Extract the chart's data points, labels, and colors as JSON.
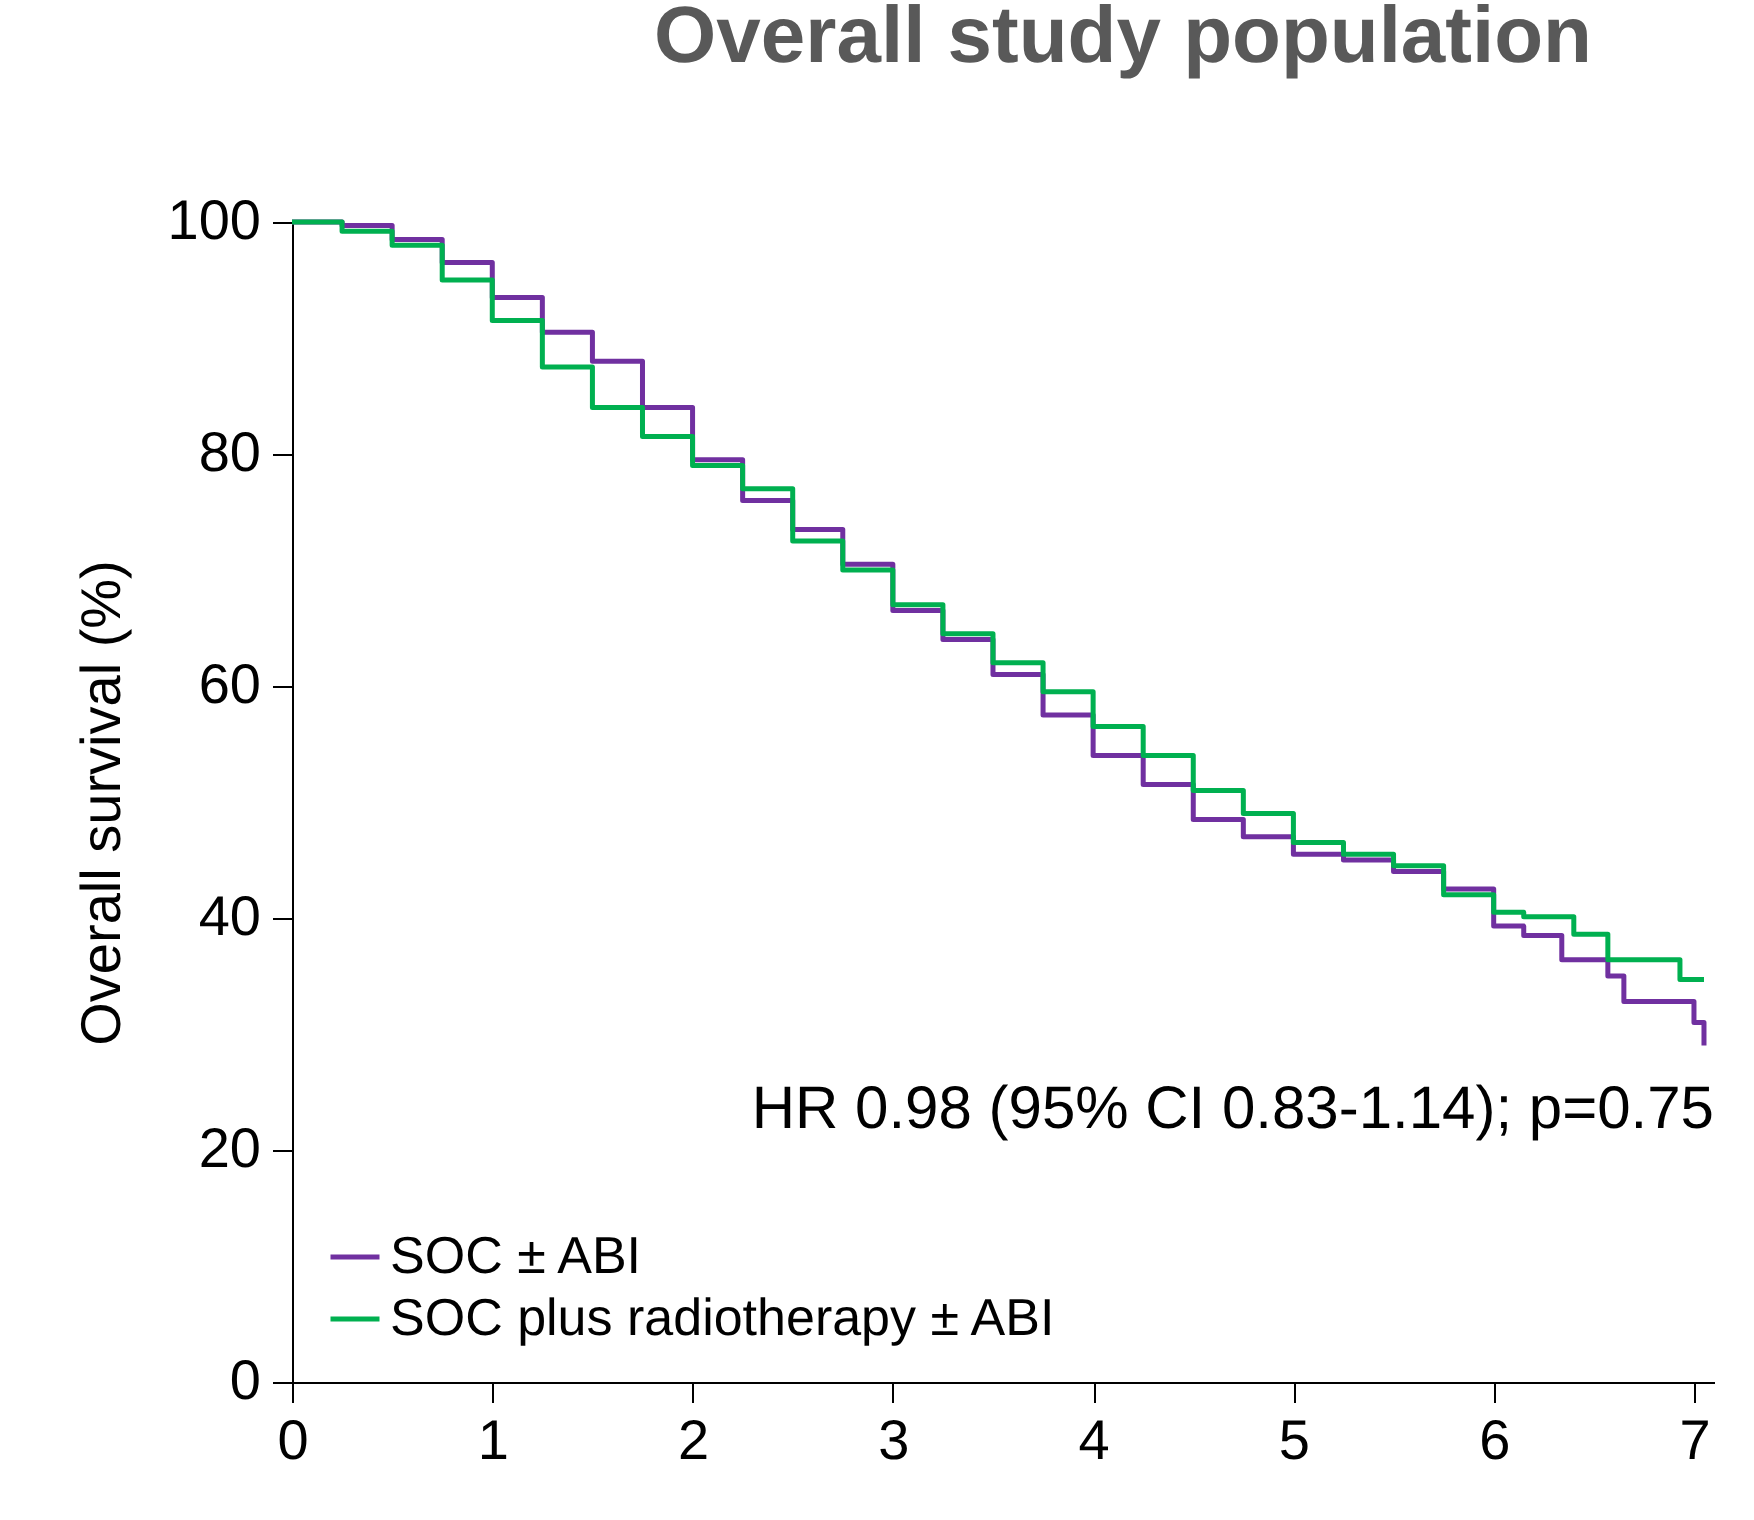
{
  "chart_data": {
    "type": "step",
    "title": "Overall study population",
    "ylabel": "Overall survival (%)",
    "xlim": [
      0,
      7.1
    ],
    "xticks": [
      0,
      1,
      2,
      3,
      4,
      5,
      6,
      7
    ],
    "ylim": [
      0,
      100
    ],
    "yticks": [
      0,
      20,
      40,
      60,
      80,
      100
    ],
    "grid": false,
    "legend": "bottom left",
    "annotations": [
      "HR 0.98 (95% CI 0.83-1.14); p=0.75"
    ],
    "series": [
      {
        "name": "SOC ± ABI",
        "color": "#7030a0",
        "x": [
          0,
          0.25,
          0.5,
          0.75,
          1,
          1.25,
          1.5,
          1.75,
          2,
          2.25,
          2.5,
          2.75,
          3,
          3.25,
          3.5,
          3.75,
          4,
          4.25,
          4.5,
          4.75,
          5,
          5.25,
          5.5,
          5.75,
          6,
          6.15,
          6.34,
          6.57,
          6.65,
          7.0,
          7.05
        ],
        "values": [
          100,
          99.7,
          98.5,
          96.5,
          93.5,
          90.5,
          88,
          84,
          79.5,
          76,
          73.5,
          70.5,
          66.5,
          64,
          61,
          57.5,
          54,
          51.5,
          48.5,
          47,
          45.5,
          45,
          44,
          42.5,
          39.3,
          38.5,
          36.4,
          35,
          32.8,
          31,
          29
        ]
      },
      {
        "name": "SOC plus radiotherapy ± ABI",
        "color": "#00b050",
        "x": [
          0,
          0.25,
          0.5,
          0.75,
          1,
          1.25,
          1.5,
          1.75,
          2,
          2.25,
          2.5,
          2.75,
          3,
          3.25,
          3.5,
          3.75,
          4,
          4.25,
          4.5,
          4.75,
          5,
          5.25,
          5.5,
          5.75,
          6,
          6.15,
          6.4,
          6.57,
          6.93,
          7.05
        ],
        "values": [
          100,
          99.2,
          98,
          95,
          91.5,
          87.5,
          84,
          81.5,
          79,
          77,
          72.5,
          70,
          67,
          64.5,
          62,
          59.5,
          56.5,
          54,
          51,
          49,
          46.5,
          45.5,
          44.5,
          42,
          40.5,
          40.1,
          38.6,
          36.4,
          34.7,
          34.7
        ]
      }
    ]
  }
}
